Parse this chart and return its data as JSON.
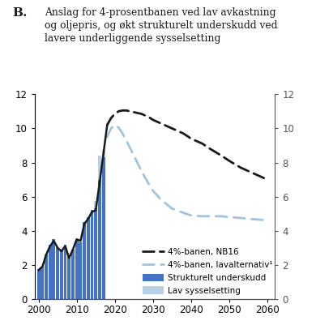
{
  "title_b": "B.",
  "title_text": "Anslag for 4-prosentbanen ved lav avkastning\nog oljepris, og økt strukturelt underskudd ved\nlavere underliggende sysselsetting",
  "ylim": [
    0,
    12
  ],
  "xlim": [
    1999,
    2062
  ],
  "xticks": [
    2000,
    2010,
    2020,
    2030,
    2040,
    2050,
    2060
  ],
  "yticks": [
    0,
    2,
    4,
    6,
    8,
    10,
    12
  ],
  "bar_years": [
    2000,
    2001,
    2002,
    2003,
    2004,
    2005,
    2006,
    2007,
    2008,
    2009,
    2010,
    2011,
    2012,
    2013,
    2014,
    2015,
    2016,
    2017
  ],
  "strukturert": [
    1.7,
    1.9,
    2.6,
    3.2,
    3.5,
    3.0,
    2.9,
    3.2,
    2.5,
    2.9,
    3.5,
    3.3,
    4.5,
    4.8,
    5.2,
    5.3,
    7.0,
    8.3
  ],
  "lav_sysselsetting": [
    0.0,
    0.0,
    0.0,
    0.0,
    0.0,
    0.0,
    0.0,
    0.0,
    0.0,
    0.0,
    0.0,
    0.0,
    0.0,
    0.0,
    0.0,
    0.45,
    1.4,
    0.45
  ],
  "bar_color_dark": "#4472c4",
  "bar_color_light": "#b8d0e8",
  "nb16_solid_years": [
    2000,
    2001,
    2002,
    2003,
    2004,
    2005,
    2006,
    2007,
    2008,
    2009,
    2010,
    2011,
    2012,
    2013,
    2014,
    2015,
    2016,
    2017,
    2018
  ],
  "nb16_solid_values": [
    1.7,
    1.9,
    2.6,
    3.1,
    3.4,
    3.0,
    2.8,
    3.1,
    2.4,
    2.9,
    3.5,
    3.4,
    4.4,
    4.7,
    5.1,
    5.2,
    6.8,
    8.5,
    10.2
  ],
  "nb16_dash_years": [
    2018,
    2019,
    2020,
    2021,
    2022,
    2023,
    2024,
    2025,
    2026,
    2027,
    2028,
    2029,
    2030,
    2032,
    2035,
    2038,
    2040,
    2043,
    2045,
    2048,
    2050,
    2053,
    2055,
    2058,
    2060
  ],
  "nb16_dash_values": [
    10.2,
    10.6,
    10.85,
    11.0,
    11.05,
    11.05,
    11.0,
    10.95,
    10.9,
    10.85,
    10.75,
    10.65,
    10.5,
    10.3,
    10.0,
    9.7,
    9.4,
    9.1,
    8.8,
    8.4,
    8.1,
    7.7,
    7.5,
    7.2,
    7.0
  ],
  "lav_years": [
    2018,
    2019,
    2020,
    2021,
    2022,
    2023,
    2024,
    2025,
    2026,
    2027,
    2028,
    2029,
    2030,
    2032,
    2035,
    2038,
    2040,
    2043,
    2045,
    2048,
    2050,
    2053,
    2055,
    2058,
    2060
  ],
  "lav_values": [
    9.5,
    10.0,
    10.2,
    10.05,
    9.7,
    9.3,
    8.85,
    8.4,
    7.95,
    7.5,
    7.1,
    6.7,
    6.35,
    5.85,
    5.3,
    5.05,
    4.9,
    4.85,
    4.85,
    4.85,
    4.8,
    4.75,
    4.7,
    4.65,
    4.6
  ],
  "legend_labels": [
    "4%-banen, NB16",
    "4%-banen, lavalternativ¹",
    "Strukturelt underskudd",
    "Lav sysselsetting"
  ],
  "line_color_nb16": "#1a1a1a",
  "line_color_lav": "#a0c4de"
}
